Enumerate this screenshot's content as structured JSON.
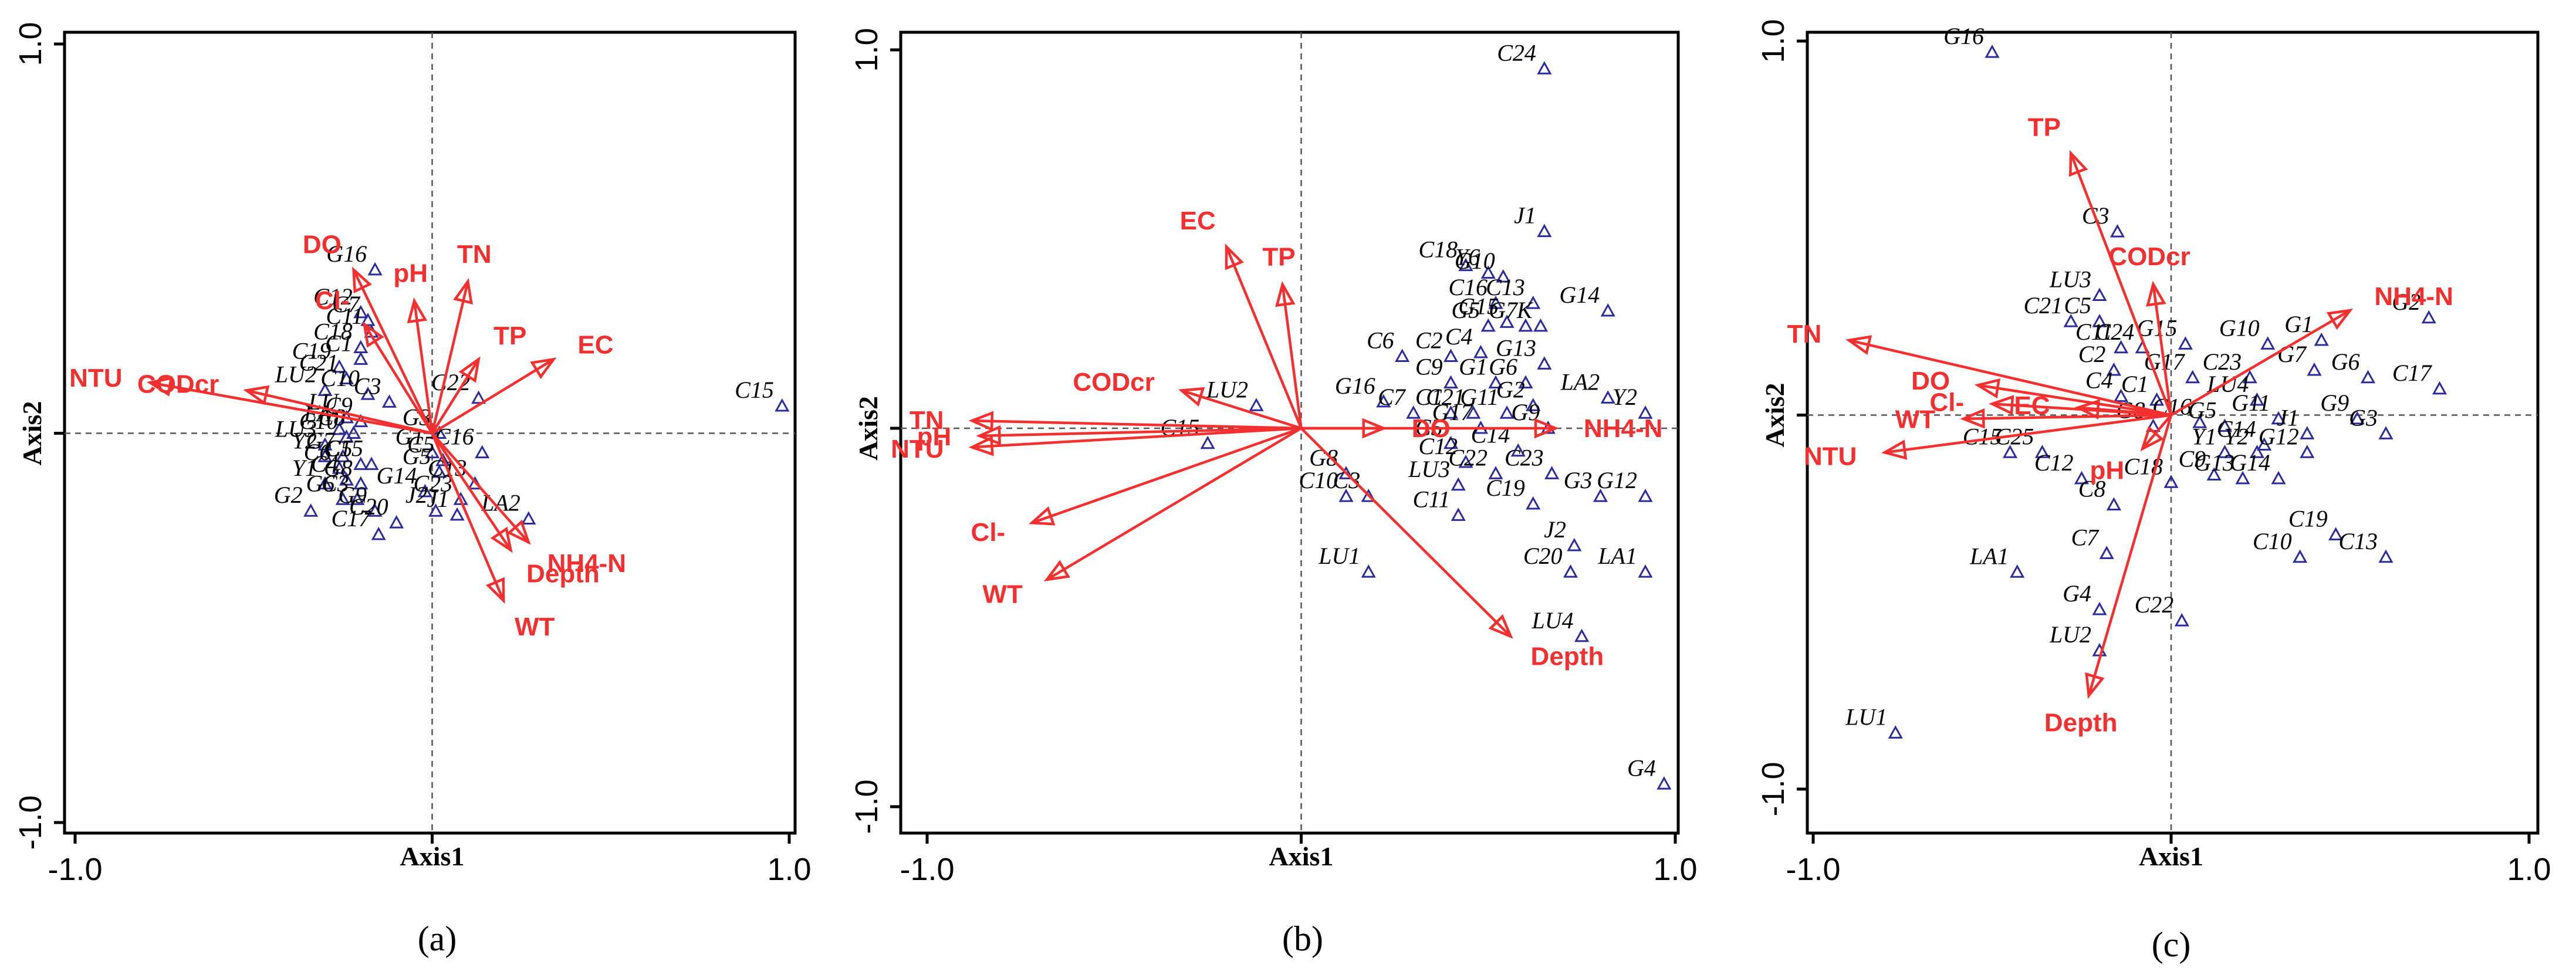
{
  "chart_data": [
    {
      "type": "scatter",
      "caption": "(a)",
      "xlabel": "Axis1",
      "ylabel": "Axis2",
      "xlim": [
        -1.0,
        1.0
      ],
      "ylim": [
        -1.0,
        1.0
      ],
      "tick_labels": {
        "x_min": "-1.0",
        "x_max": "1.0",
        "y_min": "-1.0",
        "y_max": "1.0"
      },
      "vectors": [
        {
          "label": "NTU",
          "x": -0.79,
          "y": 0.13
        },
        {
          "label": "CODcr",
          "x": -0.52,
          "y": 0.11
        },
        {
          "label": "DO",
          "x": -0.22,
          "y": 0.42
        },
        {
          "label": "Cl-",
          "x": -0.19,
          "y": 0.28
        },
        {
          "label": "pH",
          "x": -0.05,
          "y": 0.34
        },
        {
          "label": "TN",
          "x": 0.1,
          "y": 0.39
        },
        {
          "label": "TP",
          "x": 0.13,
          "y": 0.19
        },
        {
          "label": "EC",
          "x": 0.34,
          "y": 0.19
        },
        {
          "label": "NH4-N",
          "x": 0.27,
          "y": -0.28
        },
        {
          "label": "Depth",
          "x": 0.22,
          "y": -0.3
        },
        {
          "label": "WT",
          "x": 0.2,
          "y": -0.43
        }
      ],
      "sites": [
        {
          "label": "G16",
          "x": -0.16,
          "y": 0.42
        },
        {
          "label": "C12",
          "x": -0.2,
          "y": 0.31
        },
        {
          "label": "C7",
          "x": -0.18,
          "y": 0.29
        },
        {
          "label": "C11",
          "x": -0.17,
          "y": 0.26
        },
        {
          "label": "C18",
          "x": -0.2,
          "y": 0.22
        },
        {
          "label": "C19",
          "x": -0.26,
          "y": 0.17
        },
        {
          "label": "C1",
          "x": -0.2,
          "y": 0.19
        },
        {
          "label": "C21",
          "x": -0.24,
          "y": 0.14
        },
        {
          "label": "LU2",
          "x": -0.3,
          "y": 0.11
        },
        {
          "label": "C10",
          "x": -0.18,
          "y": 0.1
        },
        {
          "label": "C3",
          "x": -0.12,
          "y": 0.08
        },
        {
          "label": "LU",
          "x": -0.24,
          "y": 0.04
        },
        {
          "label": "C9",
          "x": -0.2,
          "y": 0.03
        },
        {
          "label": "LA",
          "x": -0.26,
          "y": 0.01
        },
        {
          "label": "C8",
          "x": -0.22,
          "y": 0.0
        },
        {
          "label": "C10",
          "x": -0.24,
          "y": -0.01
        },
        {
          "label": "LU3",
          "x": -0.3,
          "y": -0.03
        },
        {
          "label": "Y2",
          "x": -0.3,
          "y": -0.06
        },
        {
          "label": "G7",
          "x": -0.25,
          "y": -0.06
        },
        {
          "label": "C6",
          "x": -0.26,
          "y": -0.09
        },
        {
          "label": "C5",
          "x": -0.2,
          "y": -0.08
        },
        {
          "label": "C15",
          "x": -0.17,
          "y": -0.08
        },
        {
          "label": "Y1",
          "x": -0.3,
          "y": -0.13
        },
        {
          "label": "C4",
          "x": -0.24,
          "y": -0.12
        },
        {
          "label": "G8",
          "x": -0.2,
          "y": -0.13
        },
        {
          "label": "G6",
          "x": -0.25,
          "y": -0.17
        },
        {
          "label": "C3",
          "x": -0.21,
          "y": -0.17
        },
        {
          "label": "G2",
          "x": -0.34,
          "y": -0.2
        },
        {
          "label": "G9",
          "x": -0.16,
          "y": -0.2
        },
        {
          "label": "C20",
          "x": -0.1,
          "y": -0.23
        },
        {
          "label": "C17",
          "x": -0.15,
          "y": -0.26
        },
        {
          "label": "G3",
          "x": 0.02,
          "y": 0.0
        },
        {
          "label": "G1",
          "x": 0.0,
          "y": -0.05
        },
        {
          "label": "C5",
          "x": 0.03,
          "y": -0.07
        },
        {
          "label": "C16",
          "x": 0.14,
          "y": -0.05
        },
        {
          "label": "C22",
          "x": 0.13,
          "y": 0.09
        },
        {
          "label": "G5",
          "x": 0.02,
          "y": -0.1
        },
        {
          "label": "C13",
          "x": 0.12,
          "y": -0.13
        },
        {
          "label": "G14",
          "x": -0.02,
          "y": -0.15
        },
        {
          "label": "C23",
          "x": 0.08,
          "y": -0.17
        },
        {
          "label": "J2",
          "x": 0.01,
          "y": -0.2
        },
        {
          "label": "J1",
          "x": 0.07,
          "y": -0.21
        },
        {
          "label": "LA2",
          "x": 0.27,
          "y": -0.22
        },
        {
          "label": "C15",
          "x": 0.98,
          "y": 0.07
        }
      ]
    },
    {
      "type": "scatter",
      "caption": "(b)",
      "xlabel": "Axis1",
      "ylabel": "Axis2",
      "xlim": [
        -1.0,
        1.0
      ],
      "ylim": [
        -1.0,
        1.0
      ],
      "tick_labels": {
        "x_min": "-1.0",
        "x_max": "1.0",
        "y_min": "-1.0",
        "y_max": "1.0"
      },
      "vectors": [
        {
          "label": "EC",
          "x": -0.2,
          "y": 0.48
        },
        {
          "label": "TP",
          "x": -0.05,
          "y": 0.38
        },
        {
          "label": "CODcr",
          "x": -0.32,
          "y": 0.1
        },
        {
          "label": "TN",
          "x": -0.88,
          "y": 0.02
        },
        {
          "label": "pH",
          "x": -0.86,
          "y": -0.02
        },
        {
          "label": "NTU",
          "x": -0.88,
          "y": -0.05
        },
        {
          "label": "Cl-",
          "x": -0.72,
          "y": -0.25
        },
        {
          "label": "WT",
          "x": -0.68,
          "y": -0.4
        },
        {
          "label": "DO",
          "x": 0.22,
          "y": 0.0
        },
        {
          "label": "NH4-N",
          "x": 0.68,
          "y": 0.0
        },
        {
          "label": "Depth",
          "x": 0.56,
          "y": -0.55
        }
      ],
      "sites": [
        {
          "label": "C24",
          "x": 0.65,
          "y": 0.95
        },
        {
          "label": "J1",
          "x": 0.65,
          "y": 0.52
        },
        {
          "label": "C18",
          "x": 0.44,
          "y": 0.43
        },
        {
          "label": "Y6",
          "x": 0.5,
          "y": 0.41
        },
        {
          "label": "G10",
          "x": 0.54,
          "y": 0.4
        },
        {
          "label": "C13",
          "x": 0.62,
          "y": 0.33
        },
        {
          "label": "G14",
          "x": 0.82,
          "y": 0.31
        },
        {
          "label": "C16",
          "x": 0.52,
          "y": 0.33
        },
        {
          "label": "G5",
          "x": 0.5,
          "y": 0.27
        },
        {
          "label": "G15",
          "x": 0.55,
          "y": 0.28
        },
        {
          "label": "G7",
          "x": 0.6,
          "y": 0.27
        },
        {
          "label": "K",
          "x": 0.64,
          "y": 0.27
        },
        {
          "label": "C6",
          "x": 0.27,
          "y": 0.19
        },
        {
          "label": "C2",
          "x": 0.4,
          "y": 0.19
        },
        {
          "label": "C4",
          "x": 0.48,
          "y": 0.2
        },
        {
          "label": "G13",
          "x": 0.65,
          "y": 0.17
        },
        {
          "label": "C9",
          "x": 0.4,
          "y": 0.12
        },
        {
          "label": "G1",
          "x": 0.52,
          "y": 0.12
        },
        {
          "label": "G6",
          "x": 0.6,
          "y": 0.12
        },
        {
          "label": "G16",
          "x": 0.22,
          "y": 0.07
        },
        {
          "label": "C7",
          "x": 0.3,
          "y": 0.04
        },
        {
          "label": "C1",
          "x": 0.4,
          "y": 0.04
        },
        {
          "label": "C21",
          "x": 0.46,
          "y": 0.04
        },
        {
          "label": "G11",
          "x": 0.55,
          "y": 0.04
        },
        {
          "label": "G2",
          "x": 0.62,
          "y": 0.06
        },
        {
          "label": "LA2",
          "x": 0.82,
          "y": 0.08
        },
        {
          "label": "Y2",
          "x": 0.92,
          "y": 0.04
        },
        {
          "label": "G17",
          "x": 0.48,
          "y": 0.0
        },
        {
          "label": "G9",
          "x": 0.66,
          "y": 0.0
        },
        {
          "label": "C5",
          "x": 0.4,
          "y": -0.04
        },
        {
          "label": "C14",
          "x": 0.58,
          "y": -0.06
        },
        {
          "label": "C12",
          "x": 0.44,
          "y": -0.09
        },
        {
          "label": "C22",
          "x": 0.52,
          "y": -0.12
        },
        {
          "label": "C23",
          "x": 0.67,
          "y": -0.12
        },
        {
          "label": "LU3",
          "x": 0.42,
          "y": -0.15
        },
        {
          "label": "C19",
          "x": 0.62,
          "y": -0.2
        },
        {
          "label": "G3",
          "x": 0.8,
          "y": -0.18
        },
        {
          "label": "G12",
          "x": 0.92,
          "y": -0.18
        },
        {
          "label": "C11",
          "x": 0.42,
          "y": -0.23
        },
        {
          "label": "J2",
          "x": 0.73,
          "y": -0.31
        },
        {
          "label": "C20",
          "x": 0.72,
          "y": -0.38
        },
        {
          "label": "LA1",
          "x": 0.92,
          "y": -0.38
        },
        {
          "label": "LU4",
          "x": 0.75,
          "y": -0.55
        },
        {
          "label": "LU2",
          "x": -0.12,
          "y": 0.06
        },
        {
          "label": "C15",
          "x": -0.25,
          "y": -0.04
        },
        {
          "label": "G8",
          "x": 0.12,
          "y": -0.12
        },
        {
          "label": "C10",
          "x": 0.12,
          "y": -0.18
        },
        {
          "label": "C3",
          "x": 0.18,
          "y": -0.18
        },
        {
          "label": "LU1",
          "x": 0.18,
          "y": -0.38
        },
        {
          "label": "G4",
          "x": 0.97,
          "y": -0.94
        }
      ]
    },
    {
      "type": "scatter",
      "caption": "(c)",
      "xlabel": "Axis1",
      "ylabel": "Axis2",
      "xlim": [
        -1.0,
        1.0
      ],
      "ylim": [
        -1.0,
        1.0
      ],
      "tick_labels": {
        "x_min": "-1.0",
        "x_max": "1.0",
        "y_min": "-1.0",
        "y_max": "1.0"
      },
      "vectors": [
        {
          "label": "TP",
          "x": -0.28,
          "y": 0.7
        },
        {
          "label": "CODcr",
          "x": -0.05,
          "y": 0.35
        },
        {
          "label": "NH4-N",
          "x": 0.5,
          "y": 0.28
        },
        {
          "label": "TN",
          "x": -0.9,
          "y": 0.2
        },
        {
          "label": "DO",
          "x": -0.54,
          "y": 0.08
        },
        {
          "label": "Cl-",
          "x": -0.5,
          "y": 0.03
        },
        {
          "label": "WT",
          "x": -0.58,
          "y": -0.01
        },
        {
          "label": "EC",
          "x": -0.26,
          "y": 0.02
        },
        {
          "label": "NTU",
          "x": -0.8,
          "y": -0.1
        },
        {
          "label": "pH",
          "x": -0.08,
          "y": -0.09
        },
        {
          "label": "Depth",
          "x": -0.23,
          "y": -0.75
        }
      ],
      "sites": [
        {
          "label": "G16",
          "x": -0.5,
          "y": 0.97
        },
        {
          "label": "C3",
          "x": -0.15,
          "y": 0.49
        },
        {
          "label": "LU3",
          "x": -0.2,
          "y": 0.32
        },
        {
          "label": "C21",
          "x": -0.28,
          "y": 0.25
        },
        {
          "label": "C5",
          "x": -0.2,
          "y": 0.25
        },
        {
          "label": "C11",
          "x": -0.14,
          "y": 0.18
        },
        {
          "label": "C24",
          "x": -0.08,
          "y": 0.18
        },
        {
          "label": "C2",
          "x": -0.16,
          "y": 0.12
        },
        {
          "label": "G15",
          "x": 0.04,
          "y": 0.19
        },
        {
          "label": "G17",
          "x": 0.06,
          "y": 0.1
        },
        {
          "label": "G10",
          "x": 0.27,
          "y": 0.19
        },
        {
          "label": "G1",
          "x": 0.42,
          "y": 0.2
        },
        {
          "label": "G2",
          "x": 0.72,
          "y": 0.26
        },
        {
          "label": "C23",
          "x": 0.22,
          "y": 0.1
        },
        {
          "label": "G7",
          "x": 0.4,
          "y": 0.12
        },
        {
          "label": "G6",
          "x": 0.55,
          "y": 0.1
        },
        {
          "label": "C17",
          "x": 0.75,
          "y": 0.07
        },
        {
          "label": "C4",
          "x": -0.14,
          "y": 0.05
        },
        {
          "label": "C1",
          "x": -0.04,
          "y": 0.04
        },
        {
          "label": "LU4",
          "x": 0.24,
          "y": 0.04
        },
        {
          "label": "C16",
          "x": 0.08,
          "y": -0.02
        },
        {
          "label": "G5",
          "x": 0.15,
          "y": -0.03
        },
        {
          "label": "G11",
          "x": 0.3,
          "y": -0.01
        },
        {
          "label": "G9",
          "x": 0.52,
          "y": -0.01
        },
        {
          "label": "J1",
          "x": 0.38,
          "y": -0.05
        },
        {
          "label": "G3",
          "x": 0.6,
          "y": -0.05
        },
        {
          "label": "G8",
          "x": -0.05,
          "y": -0.03
        },
        {
          "label": "C14",
          "x": 0.26,
          "y": -0.08
        },
        {
          "label": "Y1",
          "x": 0.15,
          "y": -0.1
        },
        {
          "label": "Y2",
          "x": 0.24,
          "y": -0.1
        },
        {
          "label": "G12",
          "x": 0.38,
          "y": -0.1
        },
        {
          "label": "C9",
          "x": 0.12,
          "y": -0.16
        },
        {
          "label": "G13",
          "x": 0.2,
          "y": -0.17
        },
        {
          "label": "G14",
          "x": 0.3,
          "y": -0.17
        },
        {
          "label": "C15",
          "x": -0.45,
          "y": -0.1
        },
        {
          "label": "C25",
          "x": -0.36,
          "y": -0.1
        },
        {
          "label": "C12",
          "x": -0.25,
          "y": -0.17
        },
        {
          "label": "C18",
          "x": 0.0,
          "y": -0.18
        },
        {
          "label": "C8",
          "x": -0.16,
          "y": -0.24
        },
        {
          "label": "C7",
          "x": -0.18,
          "y": -0.37
        },
        {
          "label": "C19",
          "x": 0.46,
          "y": -0.32
        },
        {
          "label": "C13",
          "x": 0.6,
          "y": -0.38
        },
        {
          "label": "C10",
          "x": 0.36,
          "y": -0.38
        },
        {
          "label": "LA1",
          "x": -0.43,
          "y": -0.42
        },
        {
          "label": "G4",
          "x": -0.2,
          "y": -0.52
        },
        {
          "label": "C22",
          "x": 0.03,
          "y": -0.55
        },
        {
          "label": "LU2",
          "x": -0.2,
          "y": -0.63
        },
        {
          "label": "LU1",
          "x": -0.77,
          "y": -0.85
        }
      ]
    }
  ]
}
